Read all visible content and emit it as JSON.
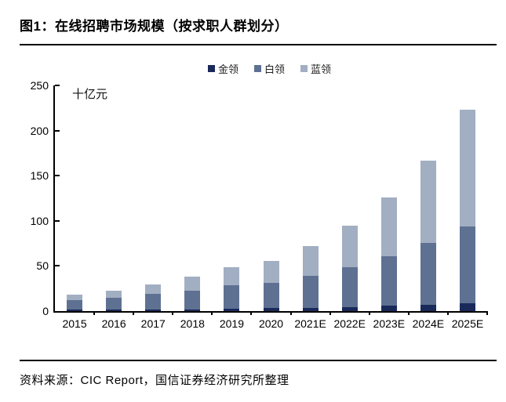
{
  "figure": {
    "title": "图1：在线招聘市场规模（按求职人群划分）",
    "source": "资料来源：CIC Report，国信证券经济研究所整理"
  },
  "chart_data": {
    "type": "bar",
    "stacked": true,
    "title": "在线招聘市场规模（按求职人群划分）",
    "unit_label": "十亿元",
    "ylabel": "十亿元",
    "xlabel": "",
    "ylim": [
      0,
      250
    ],
    "yticks": [
      0,
      50,
      100,
      150,
      200,
      250
    ],
    "grid": false,
    "legend_position": "top",
    "categories": [
      "2015",
      "2016",
      "2017",
      "2018",
      "2019",
      "2020",
      "2021E",
      "2022E",
      "2023E",
      "2024E",
      "2025E"
    ],
    "series": [
      {
        "name": "金领",
        "color": "#19295a",
        "values": [
          1.5,
          2,
          2,
          2,
          3,
          3.5,
          3.5,
          4.5,
          6,
          7,
          9
        ]
      },
      {
        "name": "白领",
        "color": "#5e7192",
        "values": [
          11,
          13,
          17.5,
          20.5,
          26,
          28,
          35.5,
          44,
          55,
          68.5,
          85
        ]
      },
      {
        "name": "蓝领",
        "color": "#a2aec2",
        "values": [
          6,
          8,
          10,
          15.5,
          19.5,
          24,
          33,
          46.5,
          64.5,
          91.5,
          129
        ]
      }
    ],
    "totals": [
      18.5,
      23,
      29.5,
      38,
      48.5,
      55.5,
      72,
      95,
      125.5,
      167,
      223
    ]
  }
}
